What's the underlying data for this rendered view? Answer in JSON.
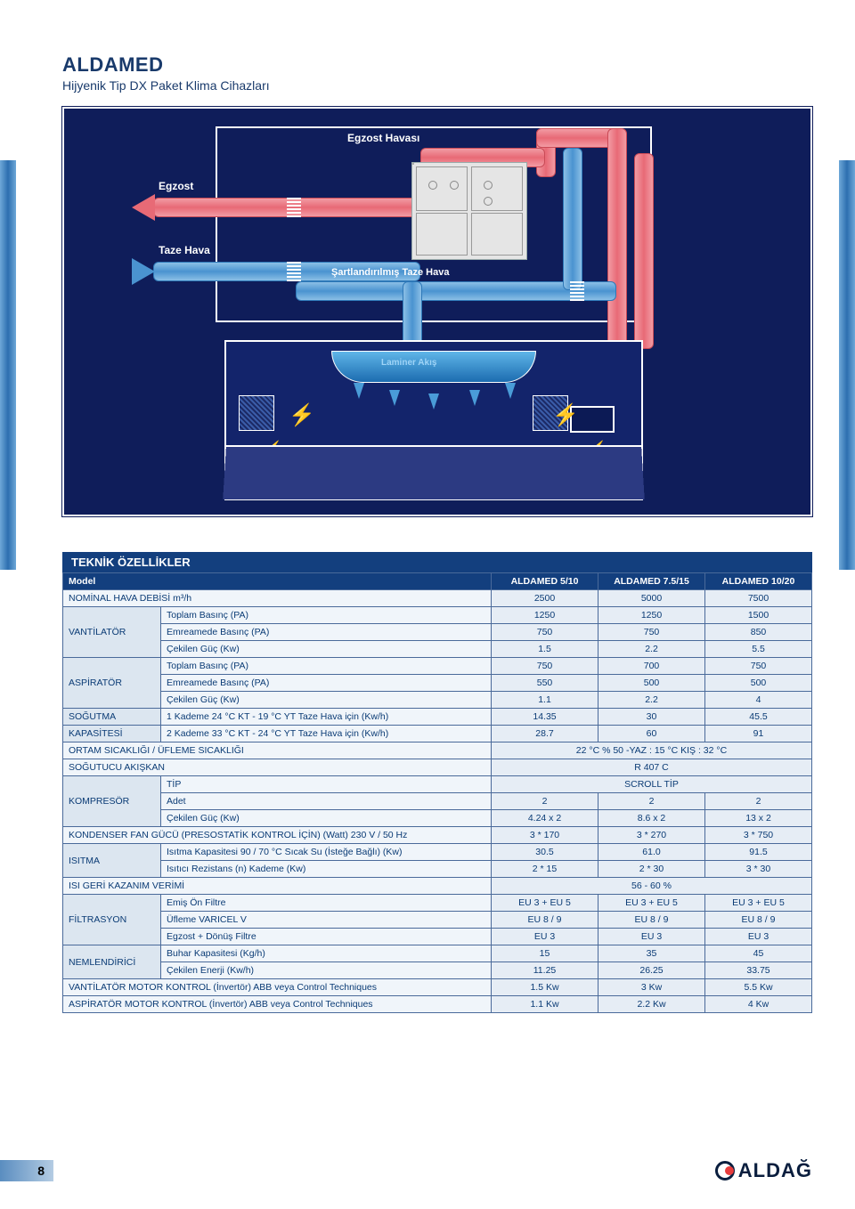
{
  "header": {
    "title": "ALDAMED",
    "subtitle": "Hijyenik Tip DX Paket Klima Cihazları"
  },
  "diagram_labels": {
    "egzost_havasi": "Egzost Havası",
    "egzost": "Egzost",
    "taze_hava": "Taze Hava",
    "sartlandirilmis": "Şartlandırılmış Taze Hava",
    "laminer": "Laminer Akış"
  },
  "section_title": "TEKNİK ÖZELLİKLER",
  "columns": {
    "model": "Model",
    "c1": "ALDAMED 5/10",
    "c2": "ALDAMED 7.5/15",
    "c3": "ALDAMED 10/20"
  },
  "rows": [
    {
      "cat": "",
      "sub": "NOMİNAL HAVA DEBİSİ m³/h",
      "v": [
        "2500",
        "5000",
        "7500"
      ],
      "catspan": 0
    },
    {
      "cat": "VANTİLATÖR",
      "sub": "Toplam Basınç (PA)",
      "v": [
        "1250",
        "1250",
        "1500"
      ],
      "catspan": 3,
      "start": true
    },
    {
      "cat": "",
      "sub": "Emreamede Basınç (PA)",
      "v": [
        "750",
        "750",
        "850"
      ]
    },
    {
      "cat": "",
      "sub": "Çekilen Güç (Kw)",
      "v": [
        "1.5",
        "2.2",
        "5.5"
      ]
    },
    {
      "cat": "ASPİRATÖR",
      "sub": "Toplam Basınç (PA)",
      "v": [
        "750",
        "700",
        "750"
      ],
      "catspan": 3,
      "start": true
    },
    {
      "cat": "",
      "sub": "Emreamede Basınç (PA)",
      "v": [
        "550",
        "500",
        "500"
      ]
    },
    {
      "cat": "",
      "sub": "Çekilen Güç (Kw)",
      "v": [
        "1.1",
        "2.2",
        "4"
      ]
    },
    {
      "cat": "SOĞUTMA",
      "sub": "1 Kademe 24 °C KT - 19 °C YT Taze Hava için (Kw/h)",
      "v": [
        "14.35",
        "30",
        "45.5"
      ],
      "catspan": 1,
      "start": true
    },
    {
      "cat": "KAPASİTESİ",
      "sub": "2 Kademe 33 °C KT - 24 °C YT Taze Hava için (Kw/h)",
      "v": [
        "28.7",
        "60",
        "91"
      ],
      "catspan": 1,
      "start": true
    },
    {
      "cat": "",
      "sub": "ORTAM SICAKLIĞI / ÜFLEME SICAKLIĞI",
      "span": "22 °C  % 50 -YAZ :  15 °C  KIŞ : 32 °C",
      "catspan": 0
    },
    {
      "cat": "",
      "sub": "SOĞUTUCU AKIŞKAN",
      "span": "R 407 C",
      "catspan": 0
    },
    {
      "cat": "KOMPRESÖR",
      "sub": "TİP",
      "span": "SCROLL TİP",
      "catspan": 3,
      "start": true
    },
    {
      "cat": "",
      "sub": "Adet",
      "v": [
        "2",
        "2",
        "2"
      ]
    },
    {
      "cat": "",
      "sub": "Çekilen Güç (Kw)",
      "v": [
        "4.24 x 2",
        "8.6 x 2",
        "13 x 2"
      ]
    },
    {
      "cat": "",
      "sub": "KONDENSER FAN GÜCÜ (PRESOSTATİK KONTROL İÇİN) (Watt) 230 V / 50 Hz",
      "v": [
        "3 * 170",
        "3 * 270",
        "3 * 750"
      ],
      "catspan": 0
    },
    {
      "cat": "ISITMA",
      "sub": "Isıtma Kapasitesi 90 / 70 °C Sıcak Su (İsteğe Bağlı) (Kw)",
      "v": [
        "30.5",
        "61.0",
        "91.5"
      ],
      "catspan": 2,
      "start": true
    },
    {
      "cat": "",
      "sub": "Isıtıcı Rezistans (n) Kademe (Kw)",
      "v": [
        "2 * 15",
        "2 * 30",
        "3 * 30"
      ]
    },
    {
      "cat": "",
      "sub": "ISI GERİ KAZANIM VERİMİ",
      "span": "56 - 60 %",
      "catspan": 0
    },
    {
      "cat": "FİLTRASYON",
      "sub": "Emiş Ön Filtre",
      "v": [
        "EU 3 + EU 5",
        "EU 3 + EU 5",
        "EU 3 + EU 5"
      ],
      "catspan": 3,
      "start": true
    },
    {
      "cat": "",
      "sub": "Üfleme VARICEL V",
      "v": [
        "EU 8 / 9",
        "EU 8 / 9",
        "EU 8 / 9"
      ]
    },
    {
      "cat": "",
      "sub": "Egzost + Dönüş Filtre",
      "v": [
        "EU 3",
        "EU 3",
        "EU 3"
      ]
    },
    {
      "cat": "NEMLENDİRİCİ",
      "sub": "Buhar Kapasitesi (Kg/h)",
      "v": [
        "15",
        "35",
        "45"
      ],
      "catspan": 2,
      "start": true
    },
    {
      "cat": "",
      "sub": "Çekilen Enerji (Kw/h)",
      "v": [
        "11.25",
        "26.25",
        "33.75"
      ]
    },
    {
      "cat": "",
      "sub": "VANTİLATÖR MOTOR KONTROL (İnvertör)  ABB veya Control Techniques",
      "v": [
        "1.5 Kw",
        "3 Kw",
        "5.5 Kw"
      ],
      "catspan": 0
    },
    {
      "cat": "",
      "sub": "ASPİRATÖR MOTOR KONTROL   (İnvertör)  ABB veya Control Techniques",
      "v": [
        "1.1 Kw",
        "2.2 Kw",
        "4 Kw"
      ],
      "catspan": 0
    }
  ],
  "footer": {
    "page": "8",
    "logo": "ALDAĞ"
  }
}
